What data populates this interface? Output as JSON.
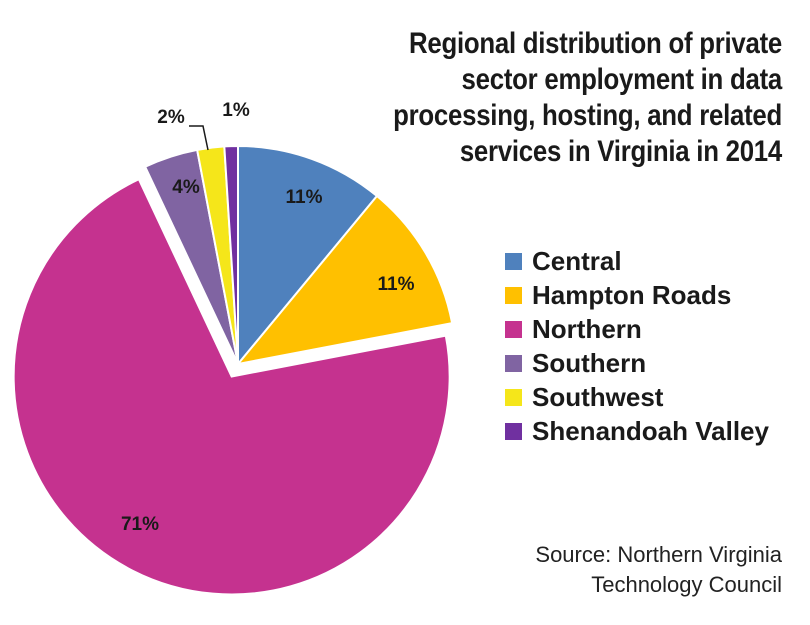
{
  "title_lines": [
    "Regional distribution of private",
    "sector employment in data",
    "processing, hosting, and related",
    "services in Virginia in 2014"
  ],
  "source_lines": [
    "Source: Northern Virginia",
    "Technology Council"
  ],
  "chart_data": {
    "type": "pie",
    "title": "Regional distribution of private sector employment in data processing, hosting, and related services in Virginia in 2014",
    "legend_position": "right",
    "slices": [
      {
        "label": "Central",
        "value": 11,
        "display": "11%",
        "color": "#4f81bd"
      },
      {
        "label": "Hampton Roads",
        "value": 11,
        "display": "11%",
        "color": "#ffc000"
      },
      {
        "label": "Northern",
        "value": 71,
        "display": "71%",
        "color": "#c5328f",
        "exploded": true
      },
      {
        "label": "Southern",
        "value": 4,
        "display": "4%",
        "color": "#8064a2"
      },
      {
        "label": "Southwest",
        "value": 2,
        "display": "2%",
        "color": "#f5e61a"
      },
      {
        "label": "Shenandoah Valley",
        "value": 1,
        "display": "1%",
        "color": "#7030a0"
      }
    ]
  }
}
